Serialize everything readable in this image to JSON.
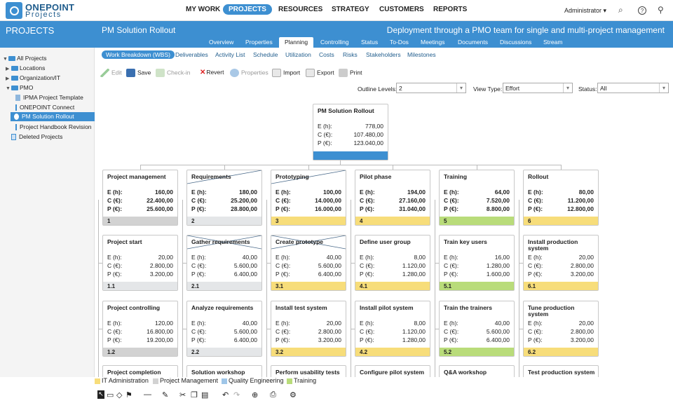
{
  "brand": {
    "line1": "ONEPOINT",
    "line2": "Projects"
  },
  "topnav": [
    "MY WORK",
    "PROJECTS",
    "RESOURCES",
    "STRATEGY",
    "CUSTOMERS",
    "REPORTS"
  ],
  "user": "Administrator ▾",
  "section_title": "PROJECTS",
  "project": {
    "title": "PM Solution Rollout",
    "description": "Deployment through a PMO team for single and multi-project management"
  },
  "tabs": [
    "Overview",
    "Properties",
    "Planning",
    "Controlling",
    "Status",
    "To-Dos",
    "Meetings",
    "Documents",
    "Discussions",
    "Stream"
  ],
  "sidebar": [
    {
      "label": "All Projects"
    },
    {
      "label": "Locations"
    },
    {
      "label": "Organization/IT"
    },
    {
      "label": "PMO"
    },
    {
      "label": "IPMA Project Template"
    },
    {
      "label": "ONEPOINT Connect"
    },
    {
      "label": "PM Solution Rollout"
    },
    {
      "label": "Project Handbook Revision"
    },
    {
      "label": "Deleted Projects"
    }
  ],
  "subtabs": [
    "Work Breakdown (WBS)",
    "Deliverables",
    "Activity List",
    "Schedule",
    "Utilization",
    "Costs",
    "Risks",
    "Stakeholders",
    "Milestones"
  ],
  "toolbar": [
    "Edit",
    "Save",
    "Check-in",
    "Revert",
    "Properties",
    "Import",
    "Export",
    "Print"
  ],
  "filters": {
    "outline_label": "Outline Levels:",
    "outline_value": "2",
    "view_label": "View Type:",
    "view_value": "Effort",
    "status_label": "Status:",
    "status_value": "All"
  },
  "root": {
    "title": "PM Solution Rollout",
    "e": "778,00",
    "c": "107.480,00",
    "p": "123.040,00"
  },
  "labels": {
    "e": "E (h):",
    "c": "C (€):",
    "p": "P (€):"
  },
  "colors": {
    "grey": "#d2d2d2",
    "lightgrey": "#e4e6e8",
    "yellow": "#f7dd7a",
    "green": "#b9dc7a",
    "accent": "#3d8fd1"
  },
  "columns": [
    {
      "title": "Project management",
      "e": "160,00",
      "c": "22.400,00",
      "p": "25.600,00",
      "code": "1",
      "color": "grey",
      "cross": false,
      "children": [
        {
          "title": "Project start",
          "e": "20,00",
          "c": "2.800,00",
          "p": "3.200,00",
          "code": "1.1",
          "color": "lightgrey",
          "cross": false
        },
        {
          "title": "Project controlling",
          "e": "120,00",
          "c": "16.800,00",
          "p": "19.200,00",
          "code": "1.2",
          "color": "grey",
          "cross": false
        },
        {
          "title": "Project completion"
        }
      ]
    },
    {
      "title": "Requirements",
      "e": "180,00",
      "c": "25.200,00",
      "p": "28.800,00",
      "code": "2",
      "color": "lightgrey",
      "cross": true,
      "children": [
        {
          "title": "Gather requirements",
          "e": "40,00",
          "c": "5.600,00",
          "p": "6.400,00",
          "code": "2.1",
          "color": "lightgrey",
          "cross": true
        },
        {
          "title": "Analyze requirements",
          "e": "40,00",
          "c": "5.600,00",
          "p": "6.400,00",
          "code": "2.2",
          "color": "lightgrey",
          "cross": false
        },
        {
          "title": "Solution workshop"
        }
      ]
    },
    {
      "title": "Prototyping",
      "e": "100,00",
      "c": "14.000,00",
      "p": "16.000,00",
      "code": "3",
      "color": "yellow",
      "cross": true,
      "children": [
        {
          "title": "Create prototype",
          "e": "40,00",
          "c": "5.600,00",
          "p": "6.400,00",
          "code": "3.1",
          "color": "yellow",
          "cross": true
        },
        {
          "title": "Install test system",
          "e": "20,00",
          "c": "2.800,00",
          "p": "3.200,00",
          "code": "3.2",
          "color": "yellow",
          "cross": false
        },
        {
          "title": "Perform usability tests"
        }
      ]
    },
    {
      "title": "Pilot phase",
      "e": "194,00",
      "c": "27.160,00",
      "p": "31.040,00",
      "code": "4",
      "color": "yellow",
      "cross": false,
      "children": [
        {
          "title": "Define user group",
          "e": "8,00",
          "c": "1.120,00",
          "p": "1.280,00",
          "code": "4.1",
          "color": "yellow",
          "cross": false
        },
        {
          "title": "Install pilot system",
          "e": "8,00",
          "c": "1.120,00",
          "p": "1.280,00",
          "code": "4.2",
          "color": "yellow",
          "cross": false
        },
        {
          "title": "Configure pilot system"
        }
      ]
    },
    {
      "title": "Training",
      "e": "64,00",
      "c": "7.520,00",
      "p": "8.800,00",
      "code": "5",
      "color": "green",
      "cross": false,
      "children": [
        {
          "title": "Train key users",
          "e": "16,00",
          "c": "1.280,00",
          "p": "1.600,00",
          "code": "5.1",
          "color": "green",
          "cross": false
        },
        {
          "title": "Train the trainers",
          "e": "40,00",
          "c": "5.600,00",
          "p": "6.400,00",
          "code": "5.2",
          "color": "green",
          "cross": false
        },
        {
          "title": "Q&A workshop"
        }
      ]
    },
    {
      "title": "Rollout",
      "e": "80,00",
      "c": "11.200,00",
      "p": "12.800,00",
      "code": "6",
      "color": "yellow",
      "cross": false,
      "children": [
        {
          "title": "Install production system",
          "e": "20,00",
          "c": "2.800,00",
          "p": "3.200,00",
          "code": "6.1",
          "color": "yellow",
          "cross": false
        },
        {
          "title": "Tune production system",
          "e": "20,00",
          "c": "2.800,00",
          "p": "3.200,00",
          "code": "6.2",
          "color": "yellow",
          "cross": false
        },
        {
          "title": "Test production system"
        }
      ]
    }
  ],
  "legend": [
    {
      "label": "IT Administration",
      "color": "#f7dd7a"
    },
    {
      "label": "Project Management",
      "color": "#d2d2d2"
    },
    {
      "label": "Quality Engineering",
      "color": "#9fc6e8"
    },
    {
      "label": "Training",
      "color": "#b9dc7a"
    }
  ]
}
